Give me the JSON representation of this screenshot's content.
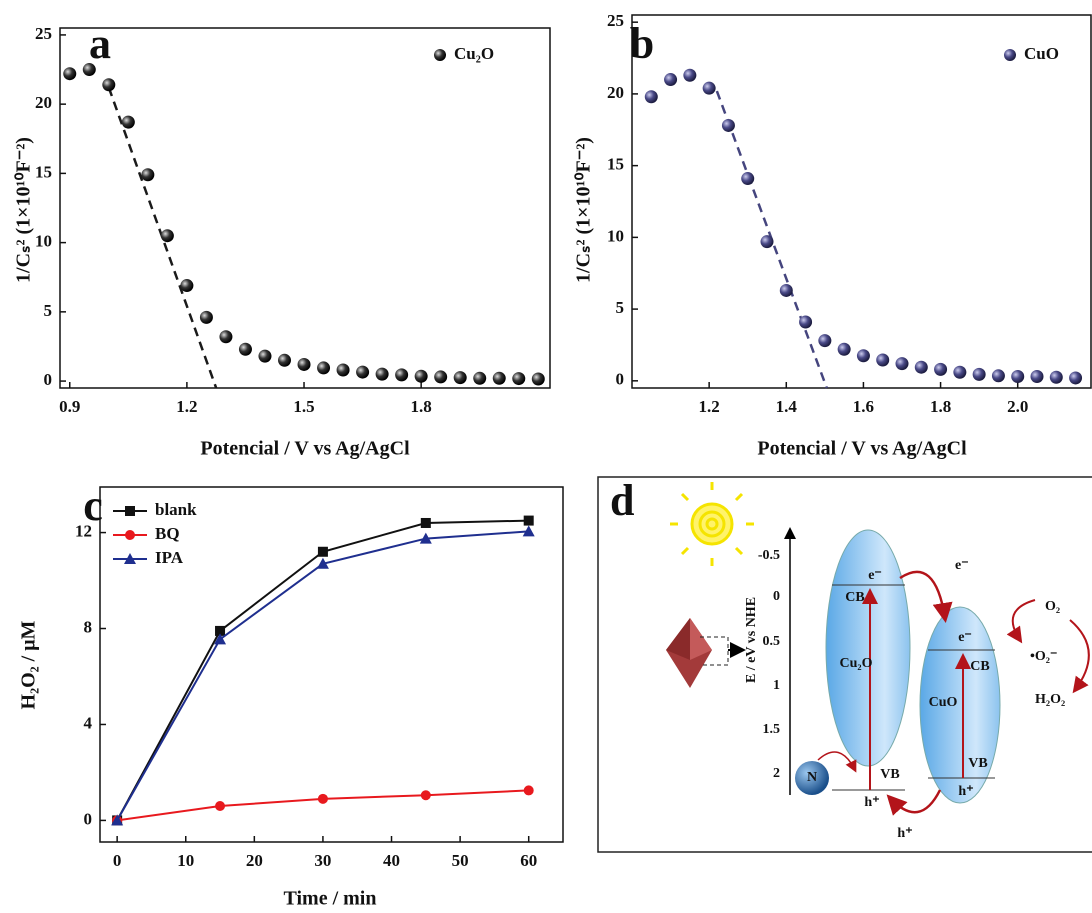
{
  "chart_data": [
    {
      "type": "scatter",
      "panel_label": "a",
      "x_label": "Potencial / V vs Ag/AgCl",
      "y_label": "1/Cₛ² (1×10¹⁰F⁻²)",
      "x": [
        0.9,
        0.95,
        1.0,
        1.05,
        1.1,
        1.15,
        1.2,
        1.25,
        1.3,
        1.35,
        1.4,
        1.45,
        1.5,
        1.55,
        1.6,
        1.65,
        1.7,
        1.75,
        1.8,
        1.85,
        1.9,
        1.95,
        2.0,
        2.05,
        2.1
      ],
      "series": [
        {
          "name": "Cu₂O",
          "color": "#1a1a1a",
          "values": [
            22.2,
            22.5,
            21.4,
            18.7,
            14.9,
            10.5,
            6.9,
            4.6,
            3.2,
            2.3,
            1.8,
            1.5,
            1.2,
            0.95,
            0.8,
            0.65,
            0.5,
            0.45,
            0.35,
            0.3,
            0.25,
            0.2,
            0.2,
            0.18,
            0.15
          ]
        }
      ],
      "fit": {
        "x": [
          1.0,
          1.275
        ],
        "values": [
          21.2,
          -0.5
        ],
        "color": "#1a1a1a"
      },
      "xlim": [
        0.875,
        2.13
      ],
      "ylim": [
        -0.5,
        25.5
      ],
      "xticks": [
        0.9,
        1.2,
        1.5,
        1.8
      ],
      "yticks": [
        0,
        5,
        10,
        15,
        20,
        25
      ],
      "legend": "upper right"
    },
    {
      "type": "scatter",
      "panel_label": "b",
      "x_label": "Potencial / V vs Ag/AgCl",
      "y_label": "1/Cₛ² (1×10¹⁰F⁻²)",
      "x": [
        1.05,
        1.1,
        1.15,
        1.2,
        1.25,
        1.3,
        1.35,
        1.4,
        1.45,
        1.5,
        1.55,
        1.6,
        1.65,
        1.7,
        1.75,
        1.8,
        1.85,
        1.9,
        1.95,
        2.0,
        2.05,
        2.1,
        2.15
      ],
      "series": [
        {
          "name": "CuO",
          "color": "#45457e",
          "values": [
            19.8,
            21.0,
            21.3,
            20.4,
            17.8,
            14.1,
            9.7,
            6.3,
            4.1,
            2.8,
            2.2,
            1.75,
            1.45,
            1.2,
            0.95,
            0.8,
            0.6,
            0.45,
            0.35,
            0.3,
            0.3,
            0.25,
            0.2
          ]
        }
      ],
      "fit": {
        "x": [
          1.22,
          1.505
        ],
        "values": [
          20.2,
          -0.5
        ],
        "color": "#45457e"
      },
      "xlim": [
        1.0,
        2.19
      ],
      "ylim": [
        -0.5,
        25.5
      ],
      "xticks": [
        1.2,
        1.4,
        1.6,
        1.8,
        {
          "value": 2,
          "label": "2.0"
        }
      ],
      "yticks": [
        0,
        5,
        10,
        15,
        20,
        25
      ],
      "legend": "upper right"
    },
    {
      "type": "line",
      "panel_label": "c",
      "x_label": "Time / min",
      "y_label": "H₂O₂ / μM",
      "x": [
        0,
        15,
        30,
        45,
        60
      ],
      "series": [
        {
          "name": "blank",
          "color": "#111111",
          "marker": "square",
          "values": [
            0,
            7.9,
            11.2,
            12.4,
            12.5
          ]
        },
        {
          "name": "BQ",
          "color": "#e8191e",
          "marker": "circle",
          "values": [
            0,
            0.6,
            0.9,
            1.05,
            1.25
          ]
        },
        {
          "name": "IPA",
          "color": "#1f2f8f",
          "marker": "triangle",
          "values": [
            0,
            7.55,
            10.7,
            11.75,
            12.05
          ]
        }
      ],
      "xlim": [
        -2.5,
        65
      ],
      "ylim": [
        -0.9,
        13.9
      ],
      "xticks": [
        0,
        10,
        20,
        30,
        40,
        50,
        60
      ],
      "yticks": [
        0,
        4,
        8,
        12
      ],
      "legend": "upper left"
    }
  ],
  "diagram": {
    "label": "d",
    "axis_title": "E / eV vs NHE",
    "ticks": [
      "-0.5",
      "0",
      "0.5",
      "1",
      "1.5",
      "2"
    ],
    "cu2o": {
      "name": "Cu₂O",
      "cb": "CB",
      "vb": "VB",
      "e": "e⁻",
      "h": "h⁺"
    },
    "cuo": {
      "name": "CuO",
      "cb": "CB",
      "vb": "VB",
      "e": "e⁻",
      "h": "h⁺"
    },
    "transfer_e": "e⁻",
    "transfer_h": "h⁺",
    "n": "N",
    "o2": "O₂",
    "superoxide": "•O₂⁻",
    "h2o2": "H₂O₂"
  }
}
